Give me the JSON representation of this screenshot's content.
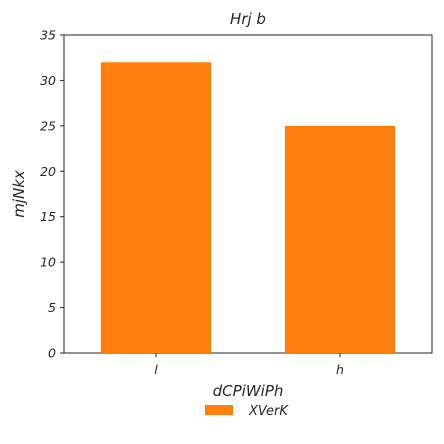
{
  "chart_data": {
    "type": "bar",
    "title": "Hrj   b",
    "xlabel": "dCPiWiPh",
    "ylabel": "mjNkx",
    "categories": [
      "l",
      "h"
    ],
    "series": [
      {
        "name": "XVerK",
        "values": [
          32,
          25
        ],
        "color": "#ff7f0e"
      }
    ],
    "ylim": [
      0,
      35
    ],
    "yticks": [
      0,
      5,
      10,
      15,
      20,
      25,
      30,
      35
    ],
    "grid": false,
    "legend": "bottom-center"
  }
}
